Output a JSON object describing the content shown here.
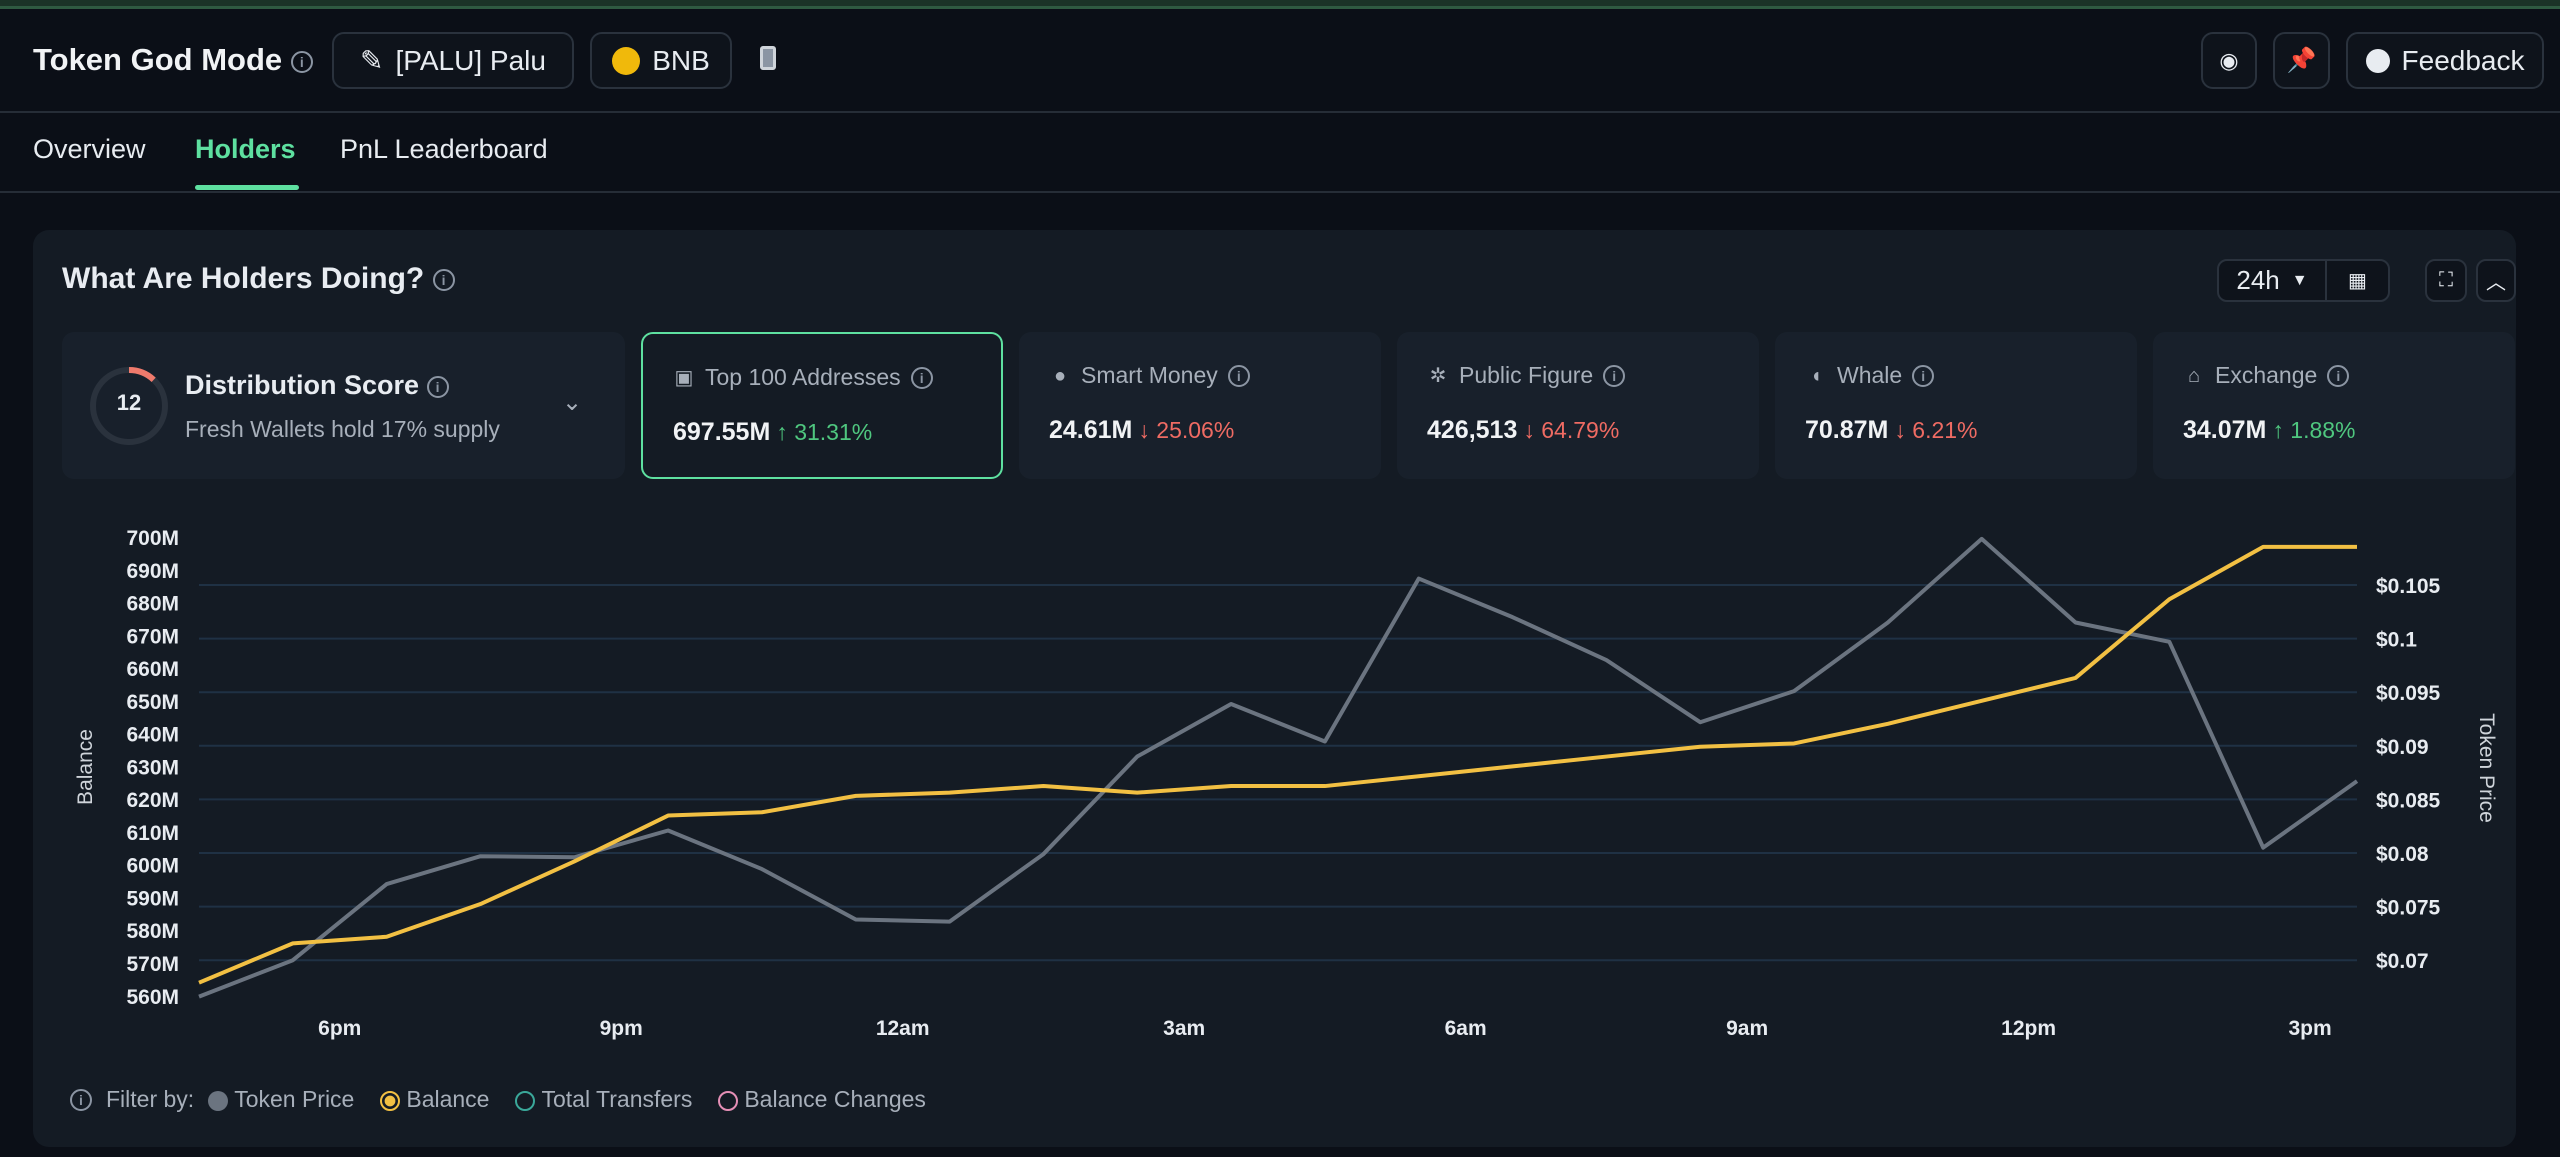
{
  "header": {
    "title": "Token God Mode",
    "token_label": "[PALU] Palu",
    "chain_label": "BNB",
    "feedback_label": "Feedback"
  },
  "tabs": [
    {
      "label": "Overview"
    },
    {
      "label": "Holders",
      "active": true
    },
    {
      "label": "PnL Leaderboard"
    }
  ],
  "panel": {
    "title": "What Are Holders Doing?",
    "timeframe": "24h"
  },
  "distribution": {
    "score": "12",
    "title": "Distribution Score",
    "subtitle": "Fresh Wallets hold 17% supply",
    "score_fraction": 0.12
  },
  "stats": [
    {
      "label": "Top 100 Addresses",
      "value": "697.55M",
      "change": "31.31%",
      "direction": "up",
      "icon": "money-icon"
    },
    {
      "label": "Smart Money",
      "value": "24.61M",
      "change": "25.06%",
      "direction": "down",
      "icon": "sunglasses-icon"
    },
    {
      "label": "Public Figure",
      "value": "426,513",
      "change": "64.79%",
      "direction": "down",
      "icon": "spotlight-icon"
    },
    {
      "label": "Whale",
      "value": "70.87M",
      "change": "6.21%",
      "direction": "down",
      "icon": "whale-icon"
    },
    {
      "label": "Exchange",
      "value": "34.07M",
      "change": "1.88%",
      "direction": "up",
      "icon": "bank-icon"
    }
  ],
  "legend": {
    "filter_label": "Filter by:",
    "items": [
      {
        "label": "Token Price",
        "color": "#6b7480",
        "state": "filled"
      },
      {
        "label": "Balance",
        "color": "#f2c043",
        "state": "selected"
      },
      {
        "label": "Total Transfers",
        "color": "#3aa89a",
        "state": "off"
      },
      {
        "label": "Balance Changes",
        "color": "#e58fb6",
        "state": "off"
      }
    ]
  },
  "colors": {
    "accent": "#5ee0a0",
    "balance": "#f2c043",
    "price": "#6b7480",
    "up": "#4fc77f",
    "down": "#ef6b63"
  },
  "chart_data": {
    "type": "line",
    "left_axis": {
      "label": "Balance",
      "ticks": [
        "700M",
        "690M",
        "680M",
        "670M",
        "660M",
        "650M",
        "640M",
        "630M",
        "620M",
        "610M",
        "600M",
        "590M",
        "580M",
        "570M",
        "560M"
      ],
      "range": [
        560,
        700
      ],
      "unit": "M"
    },
    "right_axis": {
      "label": "Token Price",
      "ticks": [
        "$0.105",
        "$0.1",
        "$0.095",
        "$0.09",
        "$0.085",
        "$0.08",
        "$0.075",
        "$0.07"
      ],
      "tick_values": [
        0.105,
        0.1,
        0.095,
        0.09,
        0.085,
        0.08,
        0.075,
        0.07
      ]
    },
    "x_labels": [
      "6pm",
      "9pm",
      "12am",
      "3am",
      "6am",
      "9am",
      "12pm",
      "3pm"
    ],
    "grid": true,
    "series": [
      {
        "name": "Balance",
        "axis": "left",
        "values": [
          564,
          576,
          578,
          588,
          601,
          615,
          616,
          621,
          622,
          624,
          622,
          624,
          624,
          627,
          630,
          633,
          636,
          637,
          643,
          650,
          657,
          681,
          697,
          697
        ]
      },
      {
        "name": "Token Price",
        "axis": "right",
        "values": [
          0.0666,
          0.07,
          0.0771,
          0.0797,
          0.0796,
          0.0821,
          0.0785,
          0.0738,
          0.0736,
          0.0799,
          0.089,
          0.0939,
          0.0904,
          0.1056,
          0.102,
          0.098,
          0.0922,
          0.0951,
          0.1015,
          0.1093,
          0.1015,
          0.0997,
          0.0805,
          0.0867
        ]
      }
    ]
  }
}
